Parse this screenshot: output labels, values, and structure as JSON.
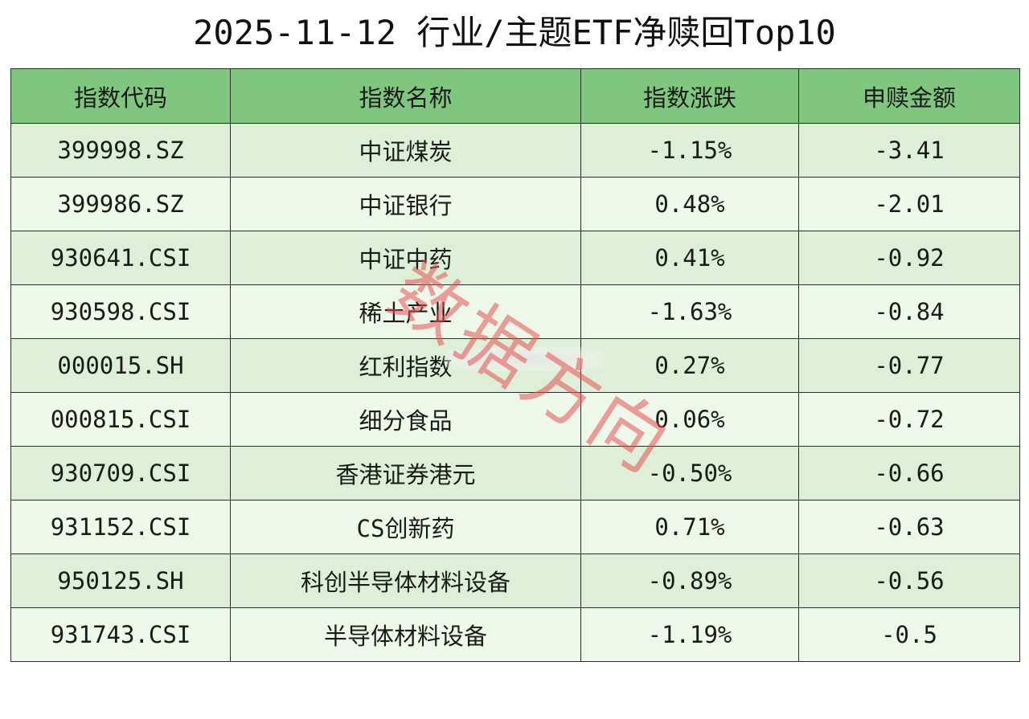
{
  "title": "2025-11-12 行业/主题ETF净赎回Top10",
  "table": {
    "headers": [
      "指数代码",
      "指数名称",
      "指数涨跌",
      "申赎金额"
    ],
    "rows": [
      {
        "code": "399998.SZ",
        "name": "中证煤炭",
        "change": "-1.15%",
        "flow": "-3.41"
      },
      {
        "code": "399986.SZ",
        "name": "中证银行",
        "change": "0.48%",
        "flow": "-2.01"
      },
      {
        "code": "930641.CSI",
        "name": "中证中药",
        "change": "0.41%",
        "flow": "-0.92"
      },
      {
        "code": "930598.CSI",
        "name": "稀土产业",
        "change": "-1.63%",
        "flow": "-0.84"
      },
      {
        "code": "000015.SH",
        "name": "红利指数",
        "change": "0.27%",
        "flow": "-0.77"
      },
      {
        "code": "000815.CSI",
        "name": "细分食品",
        "change": "0.06%",
        "flow": "-0.72"
      },
      {
        "code": "930709.CSI",
        "name": "香港证券港元",
        "change": "-0.50%",
        "flow": "-0.66"
      },
      {
        "code": "931152.CSI",
        "name": "CS创新药",
        "change": "0.71%",
        "flow": "-0.63"
      },
      {
        "code": "950125.SH",
        "name": "科创半导体材料设备",
        "change": "-0.89%",
        "flow": "-0.56"
      },
      {
        "code": "931743.CSI",
        "name": "半导体材料设备",
        "change": "-1.19%",
        "flow": "-0.5"
      }
    ]
  },
  "watermark": "数据方向",
  "colors": {
    "header_bg": "#7fc77f",
    "row_odd_bg": "#ddf0d7",
    "row_even_bg": "#eef8ea",
    "watermark": "#e85050"
  }
}
